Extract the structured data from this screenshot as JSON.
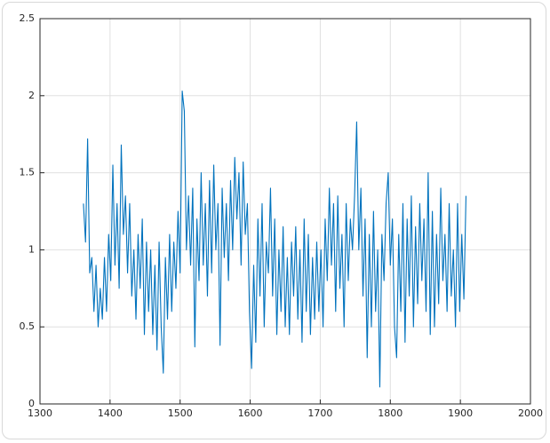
{
  "chart_data": {
    "type": "line",
    "x": [
      1362,
      1365,
      1368,
      1371,
      1374,
      1377,
      1380,
      1383,
      1386,
      1389,
      1392,
      1395,
      1398,
      1401,
      1404,
      1407,
      1410,
      1413,
      1416,
      1419,
      1422,
      1425,
      1428,
      1431,
      1434,
      1437,
      1440,
      1443,
      1446,
      1449,
      1452,
      1455,
      1458,
      1461,
      1464,
      1467,
      1470,
      1473,
      1476,
      1479,
      1482,
      1485,
      1488,
      1491,
      1494,
      1497,
      1500,
      1503,
      1506,
      1509,
      1512,
      1515,
      1518,
      1521,
      1524,
      1527,
      1530,
      1533,
      1536,
      1539,
      1542,
      1545,
      1548,
      1551,
      1554,
      1557,
      1560,
      1563,
      1566,
      1569,
      1572,
      1575,
      1578,
      1581,
      1584,
      1587,
      1590,
      1593,
      1596,
      1599,
      1602,
      1605,
      1608,
      1611,
      1614,
      1617,
      1620,
      1623,
      1626,
      1629,
      1632,
      1635,
      1638,
      1641,
      1644,
      1647,
      1650,
      1653,
      1656,
      1659,
      1662,
      1665,
      1668,
      1671,
      1674,
      1677,
      1680,
      1683,
      1686,
      1689,
      1692,
      1695,
      1698,
      1701,
      1704,
      1707,
      1710,
      1713,
      1716,
      1719,
      1722,
      1725,
      1728,
      1731,
      1734,
      1737,
      1740,
      1743,
      1746,
      1749,
      1752,
      1755,
      1758,
      1761,
      1764,
      1767,
      1770,
      1773,
      1776,
      1779,
      1782,
      1785,
      1788,
      1791,
      1794,
      1797,
      1800,
      1803,
      1806,
      1809,
      1812,
      1815,
      1818,
      1821,
      1824,
      1827,
      1830,
      1833,
      1836,
      1839,
      1842,
      1845,
      1848,
      1851,
      1854,
      1857,
      1860,
      1863,
      1866,
      1869,
      1872,
      1875,
      1878,
      1881,
      1884,
      1887,
      1890,
      1893,
      1896,
      1899,
      1902,
      1905,
      1908
    ],
    "series": [
      {
        "color": "#0072bd",
        "values": [
          1.3,
          1.05,
          1.72,
          0.85,
          0.95,
          0.6,
          0.9,
          0.5,
          0.75,
          0.55,
          0.95,
          0.6,
          1.1,
          0.8,
          1.55,
          0.9,
          1.3,
          0.75,
          1.68,
          1.1,
          1.35,
          0.85,
          1.3,
          0.7,
          1.0,
          0.55,
          1.1,
          0.75,
          1.2,
          0.45,
          1.05,
          0.6,
          1.0,
          0.45,
          0.9,
          0.35,
          1.05,
          0.5,
          0.2,
          0.95,
          0.55,
          1.1,
          0.6,
          1.05,
          0.75,
          1.25,
          0.85,
          2.03,
          1.9,
          1.0,
          1.35,
          0.9,
          1.4,
          0.37,
          1.2,
          0.8,
          1.5,
          0.9,
          1.3,
          0.7,
          1.45,
          0.85,
          1.55,
          1.0,
          1.3,
          0.38,
          1.4,
          0.95,
          1.3,
          0.8,
          1.45,
          1.0,
          1.6,
          1.2,
          1.5,
          0.9,
          1.57,
          1.1,
          1.3,
          0.6,
          0.23,
          0.9,
          0.4,
          1.2,
          0.7,
          1.3,
          0.5,
          1.05,
          0.85,
          1.4,
          0.7,
          1.2,
          0.45,
          1.0,
          0.6,
          1.15,
          0.5,
          0.95,
          0.45,
          1.05,
          0.7,
          1.15,
          0.55,
          1.0,
          0.4,
          1.2,
          0.6,
          1.1,
          0.45,
          0.95,
          0.55,
          1.05,
          0.6,
          1.0,
          0.5,
          1.2,
          0.8,
          1.4,
          0.9,
          1.3,
          0.6,
          1.35,
          0.75,
          1.1,
          0.5,
          1.3,
          0.8,
          1.2,
          1.0,
          1.35,
          1.83,
          1.0,
          1.4,
          0.7,
          1.2,
          0.3,
          1.1,
          0.5,
          1.25,
          0.6,
          1.0,
          0.11,
          1.1,
          0.8,
          1.3,
          1.5,
          0.9,
          1.2,
          0.5,
          0.3,
          1.1,
          0.6,
          1.3,
          0.4,
          1.2,
          0.7,
          1.35,
          0.5,
          1.15,
          0.65,
          1.3,
          0.8,
          1.2,
          0.6,
          1.5,
          0.45,
          1.25,
          0.5,
          1.1,
          0.65,
          1.4,
          0.8,
          1.1,
          0.6,
          1.3,
          0.7,
          1.0,
          0.5,
          1.3,
          0.6,
          1.1,
          0.68,
          1.35
        ]
      }
    ],
    "xlim": [
      1300,
      2000
    ],
    "xticks": [
      1300,
      1400,
      1500,
      1600,
      1700,
      1800,
      1900,
      2000
    ],
    "ylim": [
      0,
      2.5
    ],
    "yticks": [
      0,
      0.5,
      1,
      1.5,
      2,
      2.5
    ],
    "grid": true
  }
}
